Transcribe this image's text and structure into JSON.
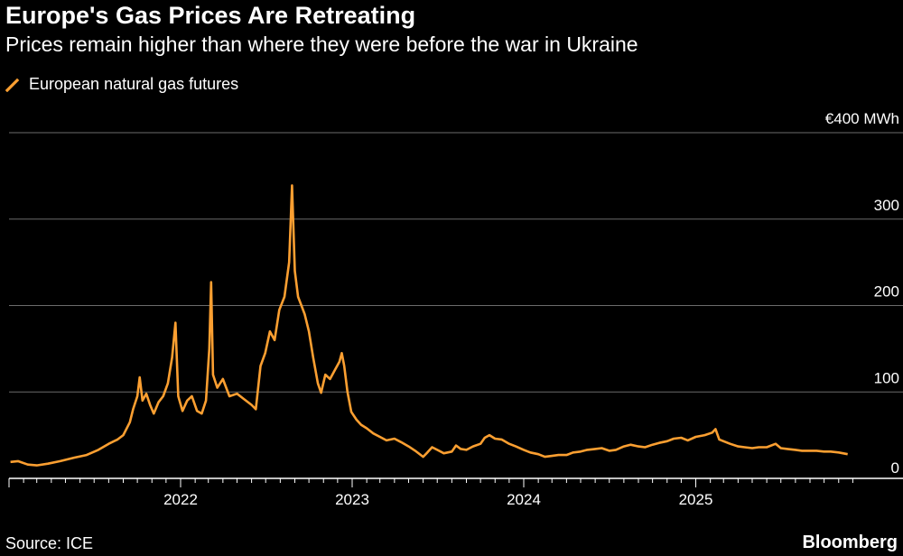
{
  "header": {
    "title": "Europe's Gas Prices Are Retreating",
    "subtitle": "Prices remain higher than where they were before the war in Ukraine"
  },
  "footer": {
    "source": "Source: ICE",
    "brand": "Bloomberg"
  },
  "colors": {
    "background": "#000000",
    "series": "#fb9f31",
    "grid": "#6b6b6b"
  },
  "chart_data": {
    "type": "line",
    "title": "Europe's Gas Prices Are Retreating",
    "subtitle": "Prices remain higher than where they were before the war in Ukraine",
    "xlabel": "",
    "ylabel": "",
    "y_unit_label": "€400 MWh",
    "ylim": [
      0,
      400
    ],
    "yticks": [
      0,
      100,
      200,
      300,
      400
    ],
    "ytick_labels": [
      "0",
      "100",
      "200",
      "300",
      "€400 MWh"
    ],
    "xlim": [
      "2021-01-01",
      "2025-12-31"
    ],
    "xticks": [
      "2022-01-01",
      "2023-01-01",
      "2024-01-01",
      "2025-01-01"
    ],
    "xtick_labels": [
      "2022",
      "2023",
      "2024",
      "2025"
    ],
    "grid": true,
    "legend_position": "top-left",
    "series": [
      {
        "name": "European natural gas futures",
        "points": [
          [
            "2021-01-04",
            19
          ],
          [
            "2021-01-20",
            20
          ],
          [
            "2021-02-10",
            16
          ],
          [
            "2021-03-01",
            15
          ],
          [
            "2021-03-25",
            17
          ],
          [
            "2021-04-20",
            20
          ],
          [
            "2021-05-20",
            24
          ],
          [
            "2021-06-15",
            27
          ],
          [
            "2021-07-10",
            33
          ],
          [
            "2021-08-01",
            40
          ],
          [
            "2021-08-20",
            45
          ],
          [
            "2021-09-01",
            50
          ],
          [
            "2021-09-15",
            65
          ],
          [
            "2021-09-22",
            80
          ],
          [
            "2021-10-01",
            95
          ],
          [
            "2021-10-06",
            117
          ],
          [
            "2021-10-12",
            90
          ],
          [
            "2021-10-20",
            98
          ],
          [
            "2021-10-28",
            85
          ],
          [
            "2021-11-05",
            75
          ],
          [
            "2021-11-15",
            88
          ],
          [
            "2021-11-25",
            95
          ],
          [
            "2021-12-05",
            110
          ],
          [
            "2021-12-14",
            140
          ],
          [
            "2021-12-21",
            180
          ],
          [
            "2021-12-27",
            95
          ],
          [
            "2022-01-05",
            78
          ],
          [
            "2022-01-15",
            90
          ],
          [
            "2022-01-25",
            95
          ],
          [
            "2022-02-05",
            78
          ],
          [
            "2022-02-15",
            75
          ],
          [
            "2022-02-24",
            90
          ],
          [
            "2022-03-03",
            150
          ],
          [
            "2022-03-07",
            227
          ],
          [
            "2022-03-11",
            120
          ],
          [
            "2022-03-20",
            105
          ],
          [
            "2022-04-01",
            115
          ],
          [
            "2022-04-15",
            95
          ],
          [
            "2022-05-01",
            98
          ],
          [
            "2022-05-15",
            92
          ],
          [
            "2022-06-01",
            85
          ],
          [
            "2022-06-10",
            80
          ],
          [
            "2022-06-20",
            130
          ],
          [
            "2022-06-30",
            145
          ],
          [
            "2022-07-10",
            170
          ],
          [
            "2022-07-20",
            160
          ],
          [
            "2022-07-30",
            195
          ],
          [
            "2022-08-10",
            210
          ],
          [
            "2022-08-20",
            250
          ],
          [
            "2022-08-26",
            339
          ],
          [
            "2022-09-01",
            240
          ],
          [
            "2022-09-08",
            210
          ],
          [
            "2022-09-15",
            200
          ],
          [
            "2022-09-22",
            190
          ],
          [
            "2022-10-01",
            170
          ],
          [
            "2022-10-10",
            140
          ],
          [
            "2022-10-20",
            110
          ],
          [
            "2022-10-27",
            99
          ],
          [
            "2022-11-05",
            120
          ],
          [
            "2022-11-15",
            115
          ],
          [
            "2022-11-25",
            125
          ],
          [
            "2022-12-05",
            135
          ],
          [
            "2022-12-10",
            145
          ],
          [
            "2022-12-15",
            130
          ],
          [
            "2022-12-22",
            100
          ],
          [
            "2022-12-30",
            77
          ],
          [
            "2023-01-10",
            68
          ],
          [
            "2023-01-20",
            62
          ],
          [
            "2023-02-01",
            58
          ],
          [
            "2023-02-15",
            52
          ],
          [
            "2023-03-01",
            48
          ],
          [
            "2023-03-15",
            44
          ],
          [
            "2023-04-01",
            46
          ],
          [
            "2023-04-15",
            42
          ],
          [
            "2023-05-01",
            37
          ],
          [
            "2023-05-15",
            32
          ],
          [
            "2023-06-01",
            25
          ],
          [
            "2023-06-10",
            30
          ],
          [
            "2023-06-20",
            36
          ],
          [
            "2023-07-01",
            33
          ],
          [
            "2023-07-15",
            29
          ],
          [
            "2023-08-01",
            31
          ],
          [
            "2023-08-10",
            38
          ],
          [
            "2023-08-20",
            34
          ],
          [
            "2023-09-01",
            33
          ],
          [
            "2023-09-15",
            37
          ],
          [
            "2023-10-01",
            40
          ],
          [
            "2023-10-10",
            47
          ],
          [
            "2023-10-20",
            50
          ],
          [
            "2023-11-01",
            46
          ],
          [
            "2023-11-15",
            45
          ],
          [
            "2023-12-01",
            40
          ],
          [
            "2023-12-15",
            37
          ],
          [
            "2024-01-01",
            33
          ],
          [
            "2024-01-15",
            30
          ],
          [
            "2024-02-01",
            28
          ],
          [
            "2024-02-15",
            25
          ],
          [
            "2024-03-01",
            26
          ],
          [
            "2024-03-15",
            27
          ],
          [
            "2024-04-01",
            27
          ],
          [
            "2024-04-15",
            30
          ],
          [
            "2024-05-01",
            31
          ],
          [
            "2024-05-15",
            33
          ],
          [
            "2024-06-01",
            34
          ],
          [
            "2024-06-15",
            35
          ],
          [
            "2024-07-01",
            32
          ],
          [
            "2024-07-15",
            33
          ],
          [
            "2024-08-01",
            37
          ],
          [
            "2024-08-15",
            39
          ],
          [
            "2024-09-01",
            37
          ],
          [
            "2024-09-15",
            36
          ],
          [
            "2024-10-01",
            39
          ],
          [
            "2024-10-15",
            41
          ],
          [
            "2024-11-01",
            43
          ],
          [
            "2024-11-15",
            46
          ],
          [
            "2024-12-01",
            47
          ],
          [
            "2024-12-15",
            44
          ],
          [
            "2025-01-01",
            48
          ],
          [
            "2025-01-20",
            50
          ],
          [
            "2025-02-05",
            53
          ],
          [
            "2025-02-12",
            57
          ],
          [
            "2025-02-20",
            45
          ],
          [
            "2025-03-01",
            43
          ],
          [
            "2025-03-15",
            40
          ],
          [
            "2025-04-01",
            37
          ],
          [
            "2025-04-15",
            36
          ],
          [
            "2025-05-01",
            35
          ],
          [
            "2025-05-15",
            36
          ],
          [
            "2025-06-01",
            36
          ],
          [
            "2025-06-20",
            40
          ],
          [
            "2025-07-01",
            35
          ],
          [
            "2025-07-15",
            34
          ],
          [
            "2025-08-01",
            33
          ],
          [
            "2025-08-15",
            32
          ],
          [
            "2025-09-01",
            32
          ],
          [
            "2025-09-15",
            32
          ],
          [
            "2025-10-01",
            31
          ],
          [
            "2025-10-15",
            31
          ],
          [
            "2025-11-01",
            30
          ],
          [
            "2025-11-20",
            28
          ]
        ]
      }
    ]
  }
}
